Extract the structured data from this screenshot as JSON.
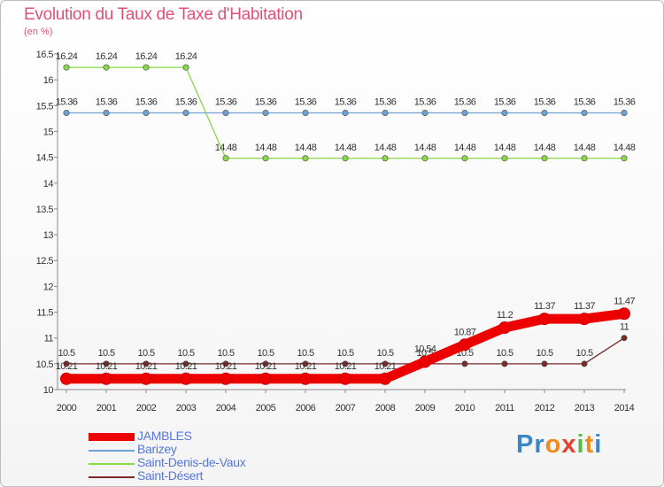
{
  "chart_data": {
    "type": "line",
    "title": "Evolution du Taux de Taxe d'Habitation",
    "ylabel": "(en %)",
    "xlabel": "",
    "ylim": [
      10,
      16.5
    ],
    "yticks": [
      "10",
      "10.5",
      "11",
      "11.5",
      "12",
      "12.5",
      "13",
      "13.5",
      "14",
      "14.5",
      "15",
      "15.5",
      "16",
      "16.5"
    ],
    "categories": [
      "2000",
      "2001",
      "2002",
      "2003",
      "2004",
      "2005",
      "2006",
      "2007",
      "2008",
      "2009",
      "2010",
      "2011",
      "2012",
      "2013",
      "2014"
    ],
    "legend_position": "bottom-left",
    "series": [
      {
        "name": "Saint-Désert",
        "color": "#7a2a2a",
        "values": [
          10.5,
          10.5,
          10.5,
          10.5,
          10.5,
          10.5,
          10.5,
          10.5,
          10.5,
          10.5,
          10.5,
          10.5,
          10.5,
          10.5,
          11
        ],
        "labels": [
          "10.5",
          "10.5",
          "10.5",
          "10.5",
          "10.5",
          "10.5",
          "10.5",
          "10.5",
          "10.5",
          "10.5",
          "10.5",
          "10.5",
          "10.5",
          "10.5",
          "11"
        ]
      },
      {
        "name": "Saint-Denis-de-Vaux",
        "color": "#88d848",
        "values": [
          16.24,
          16.24,
          16.24,
          16.24,
          14.48,
          14.48,
          14.48,
          14.48,
          14.48,
          14.48,
          14.48,
          14.48,
          14.48,
          14.48,
          14.48
        ],
        "labels": [
          "16.24",
          "16.24",
          "16.24",
          "16.24",
          "14.48",
          "14.48",
          "14.48",
          "14.48",
          "14.48",
          "14.48",
          "14.48",
          "14.48",
          "14.48",
          "14.48",
          "14.48"
        ]
      },
      {
        "name": "Barizey",
        "color": "#6fa1d3",
        "values": [
          15.36,
          15.36,
          15.36,
          15.36,
          15.36,
          15.36,
          15.36,
          15.36,
          15.36,
          15.36,
          15.36,
          15.36,
          15.36,
          15.36,
          15.36
        ],
        "labels": [
          "15.36",
          "15.36",
          "15.36",
          "15.36",
          "15.36",
          "15.36",
          "15.36",
          "15.36",
          "15.36",
          "15.36",
          "15.36",
          "15.36",
          "15.36",
          "15.36",
          "15.36"
        ]
      },
      {
        "name": "JAMBLES",
        "color": "#ee0000",
        "values": [
          10.21,
          10.21,
          10.21,
          10.21,
          10.21,
          10.21,
          10.21,
          10.21,
          10.21,
          10.54,
          10.87,
          11.2,
          11.37,
          11.37,
          11.47
        ],
        "labels": [
          "10.21",
          "10.21",
          "10.21",
          "10.21",
          "10.21",
          "10.21",
          "10.21",
          "10.21",
          "10.21",
          "10.54",
          "10.87",
          "11.2",
          "11.37",
          "11.37",
          "11.47"
        ]
      }
    ]
  },
  "legend": {
    "items": [
      {
        "label": "JAMBLES",
        "color": "#ee0000"
      },
      {
        "label": "Barizey",
        "color": "#6fa1d3"
      },
      {
        "label": "Saint-Denis-de-Vaux",
        "color": "#88d848"
      },
      {
        "label": "Saint-Désert",
        "color": "#7a2a2a"
      }
    ]
  },
  "brand": {
    "letters": [
      "P",
      "r",
      "o",
      "x",
      "i",
      "t",
      "i"
    ],
    "colors": [
      "#3b86c8",
      "#3b86c8",
      "#f08a1e",
      "#e8402a",
      "#56b947",
      "#f08a1e",
      "#3b86c8"
    ]
  }
}
